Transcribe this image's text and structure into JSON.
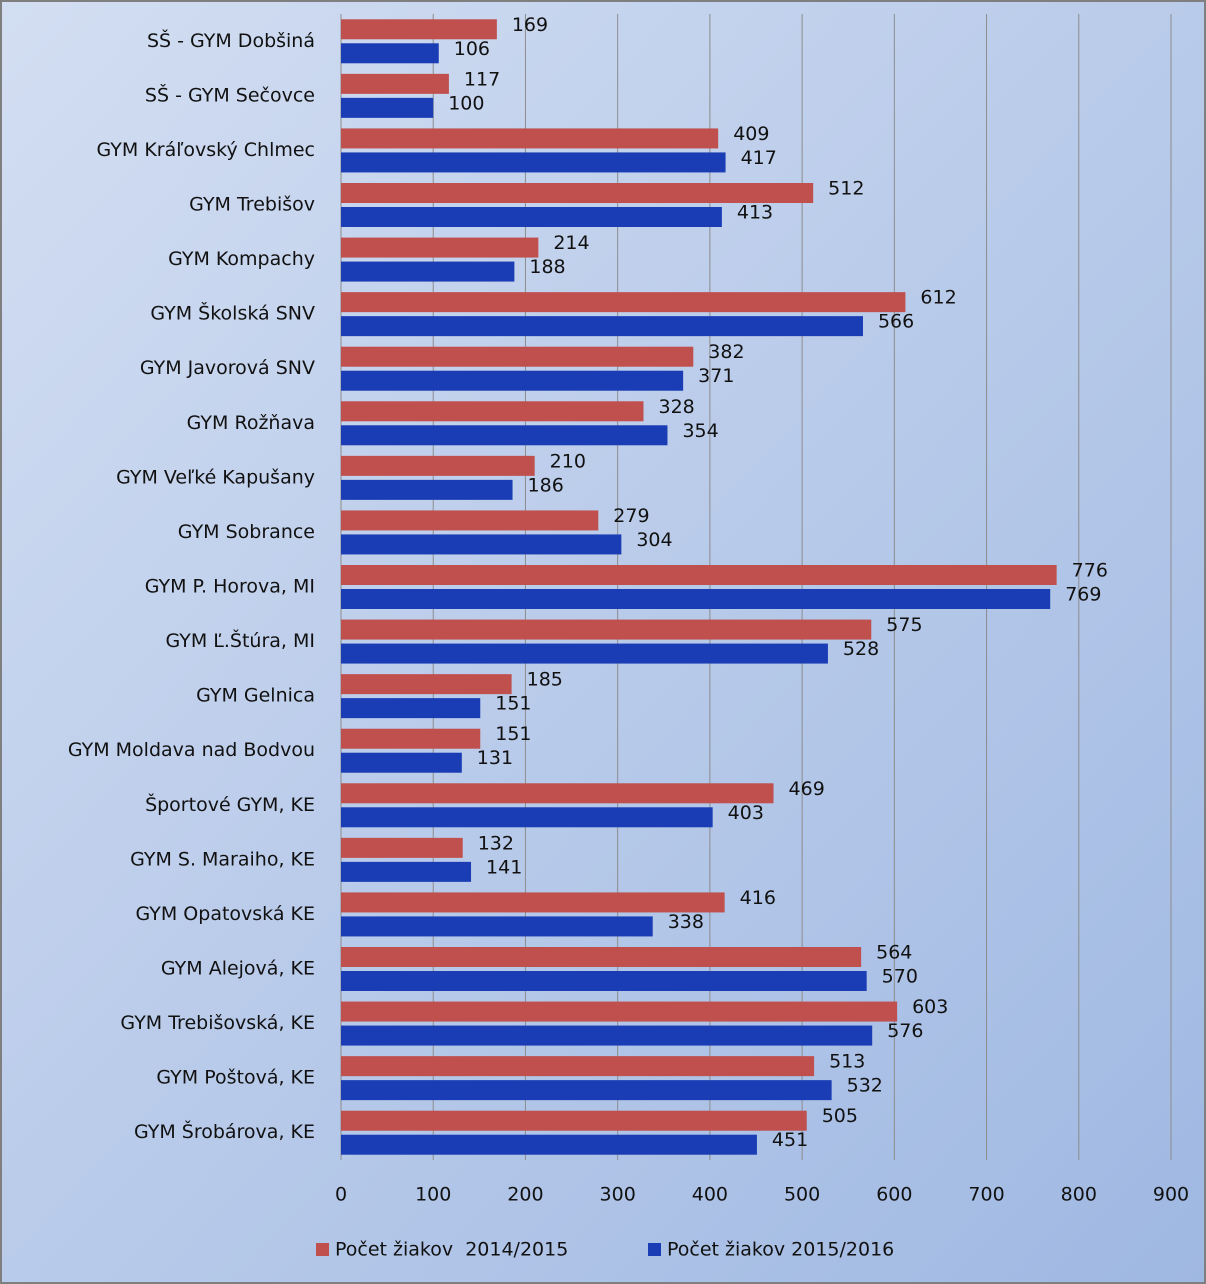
{
  "chart_data": {
    "type": "hbar",
    "categories": [
      "SŠ - GYM Dobšiná",
      "SŠ - GYM Sečovce",
      "GYM Kráľovský Chlmec",
      "GYM Trebišov",
      "GYM Kompachy",
      "GYM Školská SNV",
      "GYM Javorová SNV",
      "GYM Rožňava",
      "GYM Veľké Kapušany",
      "GYM Sobrance",
      "GYM P. Horova, MI",
      "GYM Ľ.Štúra, MI",
      "GYM Gelnica",
      "GYM Moldava nad Bodvou",
      "Športové GYM, KE",
      "GYM S. Maraiho, KE",
      "GYM Opatovská KE",
      "GYM Alejová, KE",
      "GYM Trebišovská, KE",
      "GYM Poštová, KE",
      "GYM Šrobárova, KE"
    ],
    "series": [
      {
        "name": "Počet žiakov  2014/2015",
        "color": "#c0504d",
        "values": [
          169,
          117,
          409,
          512,
          214,
          612,
          382,
          328,
          210,
          279,
          776,
          575,
          185,
          151,
          469,
          132,
          416,
          564,
          603,
          513,
          505
        ]
      },
      {
        "name": "Počet žiakov 2015/2016",
        "color": "#1a3cb4",
        "values": [
          106,
          100,
          417,
          413,
          188,
          566,
          371,
          354,
          186,
          304,
          769,
          528,
          151,
          131,
          403,
          141,
          338,
          570,
          576,
          532,
          451
        ]
      }
    ],
    "xlim": [
      0,
      900
    ],
    "xticks": [
      0,
      100,
      200,
      300,
      400,
      500,
      600,
      700,
      800,
      900
    ],
    "grid": true,
    "legend": "bottom"
  }
}
